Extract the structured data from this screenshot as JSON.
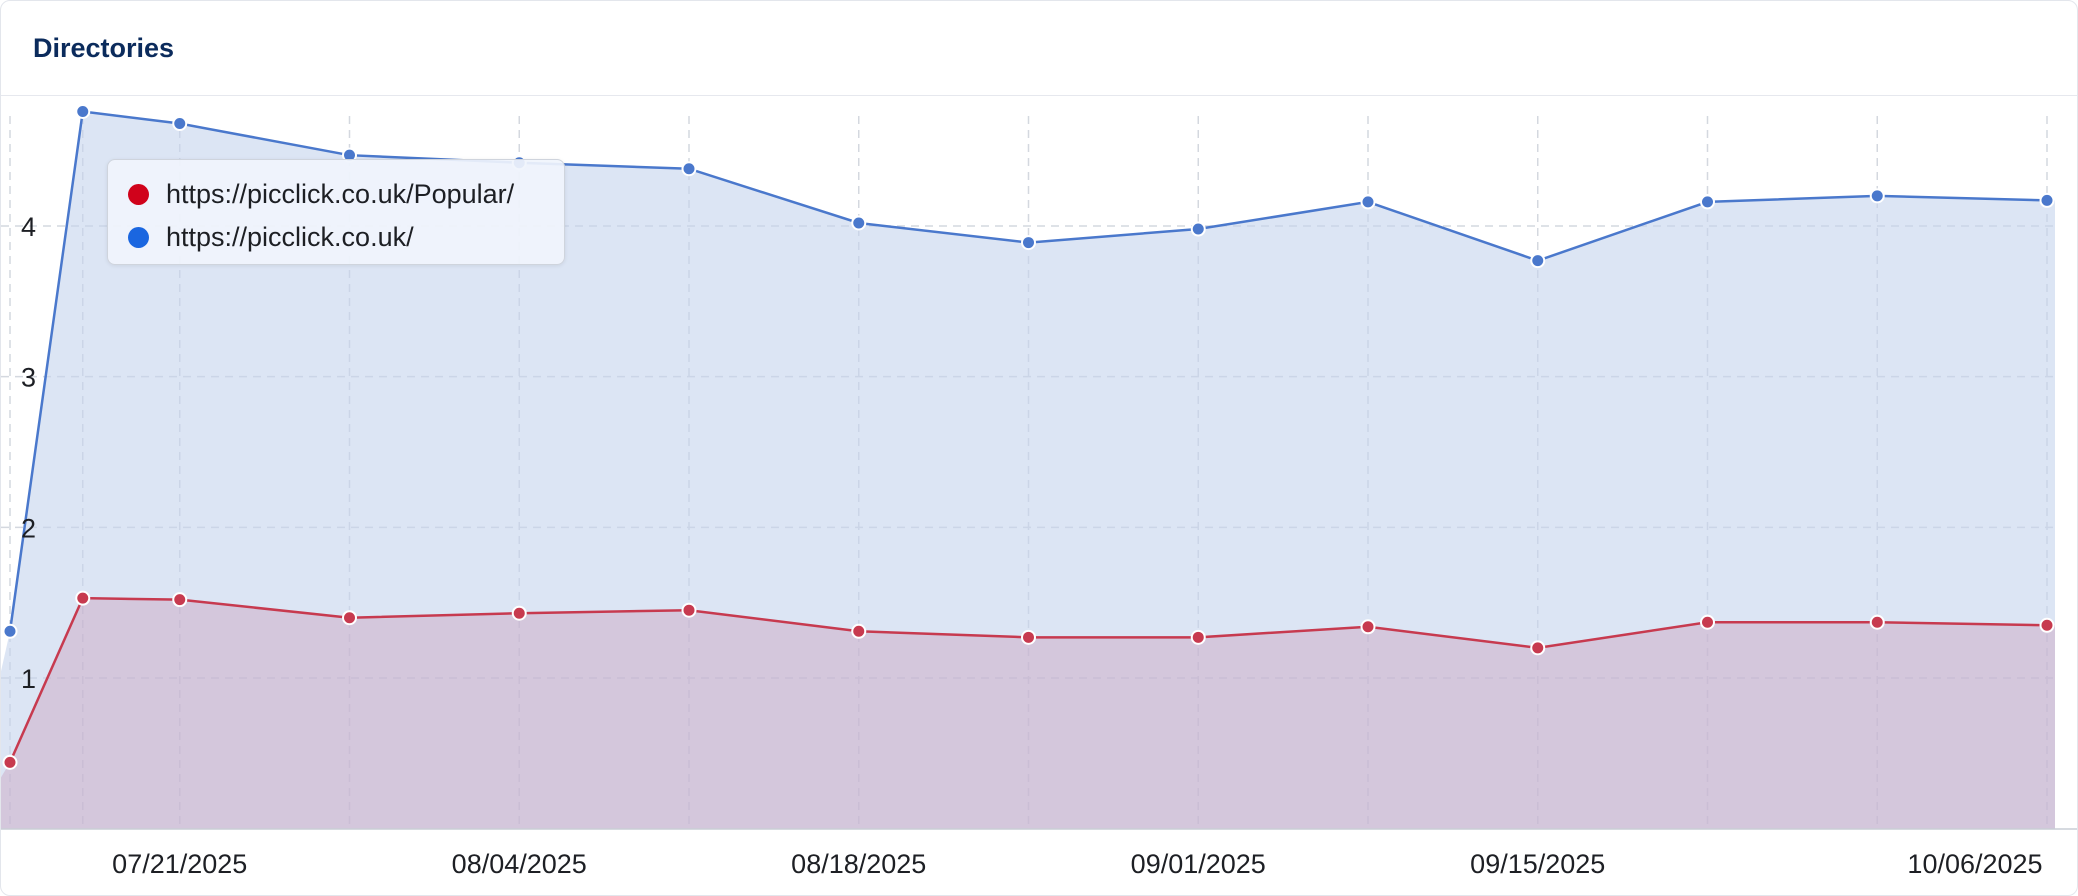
{
  "card": {
    "title": "Directories"
  },
  "chart_data": {
    "type": "area",
    "x": [
      "07/14/2025",
      "07/17/2025",
      "07/21/2025",
      "07/28/2025",
      "08/04/2025",
      "08/11/2025",
      "08/18/2025",
      "08/25/2025",
      "09/01/2025",
      "09/08/2025",
      "09/15/2025",
      "09/22/2025",
      "09/29/2025",
      "10/06/2025"
    ],
    "x_ticks": [
      "07/21/2025",
      "08/04/2025",
      "08/18/2025",
      "09/01/2025",
      "09/15/2025",
      "10/06/2025"
    ],
    "y_ticks": [
      "1",
      "2",
      "3",
      "4"
    ],
    "ylim": [
      0,
      4.8
    ],
    "grid": true,
    "legend_position": "top-left",
    "series": [
      {
        "name": "https://picclick.co.uk/Popular/",
        "color": "#d0021b",
        "line_color": "#c73a4f",
        "fill": "rgba(201,162,190,0.45)",
        "values": [
          0.44,
          1.53,
          1.52,
          1.4,
          1.43,
          1.45,
          1.31,
          1.27,
          1.27,
          1.34,
          1.2,
          1.37,
          1.37,
          1.35
        ]
      },
      {
        "name": "https://picclick.co.uk/",
        "color": "#1a66e0",
        "line_color": "#4a78cc",
        "fill": "rgba(197,211,236,0.6)",
        "values": [
          1.31,
          4.76,
          4.68,
          4.47,
          4.42,
          4.38,
          4.02,
          3.89,
          3.98,
          4.16,
          3.77,
          4.16,
          4.2,
          4.17
        ]
      }
    ]
  }
}
